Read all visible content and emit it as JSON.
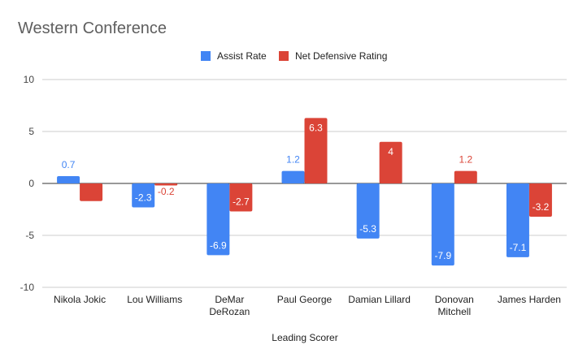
{
  "chart_data": {
    "type": "bar",
    "title": "Western Conference",
    "xlabel": "Leading Scorer",
    "ylabel": "",
    "ylim": [
      -10,
      10
    ],
    "yticks": [
      10,
      5,
      0,
      -5,
      -10
    ],
    "grid": true,
    "legend_position": "top",
    "categories": [
      [
        "Nikola Jokic"
      ],
      [
        "Lou Williams"
      ],
      [
        "DeMar",
        "DeRozan"
      ],
      [
        "Paul George"
      ],
      [
        "Damian Lillard"
      ],
      [
        "Donovan",
        "Mitchell"
      ],
      [
        "James Harden"
      ]
    ],
    "series": [
      {
        "name": "Assist Rate",
        "color": "#4285f4",
        "values": [
          0.7,
          -2.3,
          -6.9,
          1.2,
          -5.3,
          -7.9,
          -7.1
        ]
      },
      {
        "name": "Net Defensive Rating",
        "color": "#db4437",
        "values": [
          -1.7,
          -0.2,
          -2.7,
          6.3,
          4,
          1.2,
          -3.2
        ]
      }
    ]
  }
}
